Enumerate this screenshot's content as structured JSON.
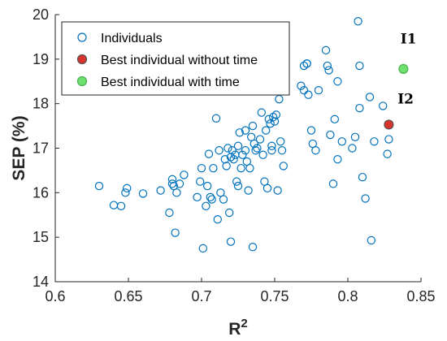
{
  "chart_data": {
    "type": "scatter",
    "xlabel": "R",
    "xlabel_superscript": "2",
    "ylabel": "SEP (%)",
    "xlim": [
      0.6,
      0.85
    ],
    "ylim": [
      14,
      20
    ],
    "xticks": [
      "0.6",
      "0.65",
      "0.7",
      "0.75",
      "0.8",
      "0.85"
    ],
    "yticks": [
      "14",
      "15",
      "16",
      "17",
      "18",
      "19",
      "20"
    ],
    "grid": false,
    "legend_position": "top-left",
    "series": [
      {
        "name": "Individuals",
        "marker": "hollow-circle",
        "color": "#0072BD",
        "points": [
          [
            0.63,
            16.15
          ],
          [
            0.64,
            15.72
          ],
          [
            0.645,
            15.7
          ],
          [
            0.648,
            16.0
          ],
          [
            0.649,
            16.1
          ],
          [
            0.66,
            15.98
          ],
          [
            0.672,
            16.05
          ],
          [
            0.678,
            15.55
          ],
          [
            0.68,
            16.3
          ],
          [
            0.68,
            16.2
          ],
          [
            0.681,
            16.15
          ],
          [
            0.682,
            15.1
          ],
          [
            0.683,
            16.0
          ],
          [
            0.685,
            16.2
          ],
          [
            0.688,
            16.4
          ],
          [
            0.697,
            15.9
          ],
          [
            0.699,
            16.25
          ],
          [
            0.7,
            16.55
          ],
          [
            0.701,
            14.75
          ],
          [
            0.703,
            15.7
          ],
          [
            0.704,
            16.15
          ],
          [
            0.705,
            16.87
          ],
          [
            0.706,
            15.9
          ],
          [
            0.707,
            15.85
          ],
          [
            0.708,
            16.55
          ],
          [
            0.71,
            17.67
          ],
          [
            0.711,
            15.4
          ],
          [
            0.712,
            16.95
          ],
          [
            0.713,
            16.0
          ],
          [
            0.715,
            15.85
          ],
          [
            0.716,
            16.75
          ],
          [
            0.717,
            16.6
          ],
          [
            0.718,
            17.0
          ],
          [
            0.719,
            15.55
          ],
          [
            0.72,
            16.8
          ],
          [
            0.72,
            14.9
          ],
          [
            0.721,
            16.95
          ],
          [
            0.722,
            16.75
          ],
          [
            0.723,
            16.85
          ],
          [
            0.724,
            16.25
          ],
          [
            0.725,
            16.15
          ],
          [
            0.725,
            17.05
          ],
          [
            0.726,
            17.35
          ],
          [
            0.727,
            16.55
          ],
          [
            0.728,
            16.85
          ],
          [
            0.73,
            16.95
          ],
          [
            0.73,
            17.4
          ],
          [
            0.731,
            16.7
          ],
          [
            0.732,
            16.05
          ],
          [
            0.733,
            16.55
          ],
          [
            0.734,
            17.25
          ],
          [
            0.735,
            14.78
          ],
          [
            0.735,
            17.5
          ],
          [
            0.736,
            17.1
          ],
          [
            0.737,
            16.95
          ],
          [
            0.738,
            17.0
          ],
          [
            0.74,
            17.2
          ],
          [
            0.741,
            17.8
          ],
          [
            0.742,
            16.85
          ],
          [
            0.743,
            16.25
          ],
          [
            0.744,
            17.4
          ],
          [
            0.745,
            16.1
          ],
          [
            0.746,
            17.65
          ],
          [
            0.747,
            17.55
          ],
          [
            0.748,
            17.05
          ],
          [
            0.748,
            16.95
          ],
          [
            0.749,
            17.7
          ],
          [
            0.75,
            17.6
          ],
          [
            0.751,
            17.75
          ],
          [
            0.752,
            16.05
          ],
          [
            0.753,
            18.1
          ],
          [
            0.754,
            17.15
          ],
          [
            0.755,
            16.95
          ],
          [
            0.756,
            16.6
          ],
          [
            0.768,
            18.4
          ],
          [
            0.77,
            18.3
          ],
          [
            0.77,
            18.85
          ],
          [
            0.772,
            18.9
          ],
          [
            0.772,
            18.9
          ],
          [
            0.773,
            18.2
          ],
          [
            0.775,
            17.4
          ],
          [
            0.776,
            17.1
          ],
          [
            0.778,
            16.95
          ],
          [
            0.78,
            18.3
          ],
          [
            0.785,
            19.2
          ],
          [
            0.786,
            18.85
          ],
          [
            0.787,
            18.75
          ],
          [
            0.788,
            17.3
          ],
          [
            0.79,
            16.2
          ],
          [
            0.791,
            17.65
          ],
          [
            0.793,
            18.5
          ],
          [
            0.793,
            16.75
          ],
          [
            0.796,
            17.15
          ],
          [
            0.803,
            17.0
          ],
          [
            0.805,
            17.25
          ],
          [
            0.807,
            19.85
          ],
          [
            0.808,
            18.85
          ],
          [
            0.808,
            17.9
          ],
          [
            0.81,
            16.35
          ],
          [
            0.812,
            15.87
          ],
          [
            0.815,
            18.15
          ],
          [
            0.816,
            14.93
          ],
          [
            0.818,
            17.15
          ],
          [
            0.824,
            17.95
          ],
          [
            0.827,
            16.87
          ],
          [
            0.828,
            17.2
          ]
        ]
      },
      {
        "name": "Best individual without time",
        "marker": "filled-circle",
        "color": "#D9332E",
        "edge_color": "#555555",
        "points": [
          [
            0.828,
            17.53
          ]
        ]
      },
      {
        "name": "Best individual with time",
        "marker": "filled-circle",
        "color": "#6EE06E",
        "edge_color": "#4CAF50",
        "points": [
          [
            0.838,
            18.78
          ]
        ]
      }
    ],
    "annotations": [
      {
        "text": "I1",
        "x": 0.836,
        "y": 19.35
      },
      {
        "text": "I2",
        "x": 0.834,
        "y": 18.0
      }
    ]
  }
}
